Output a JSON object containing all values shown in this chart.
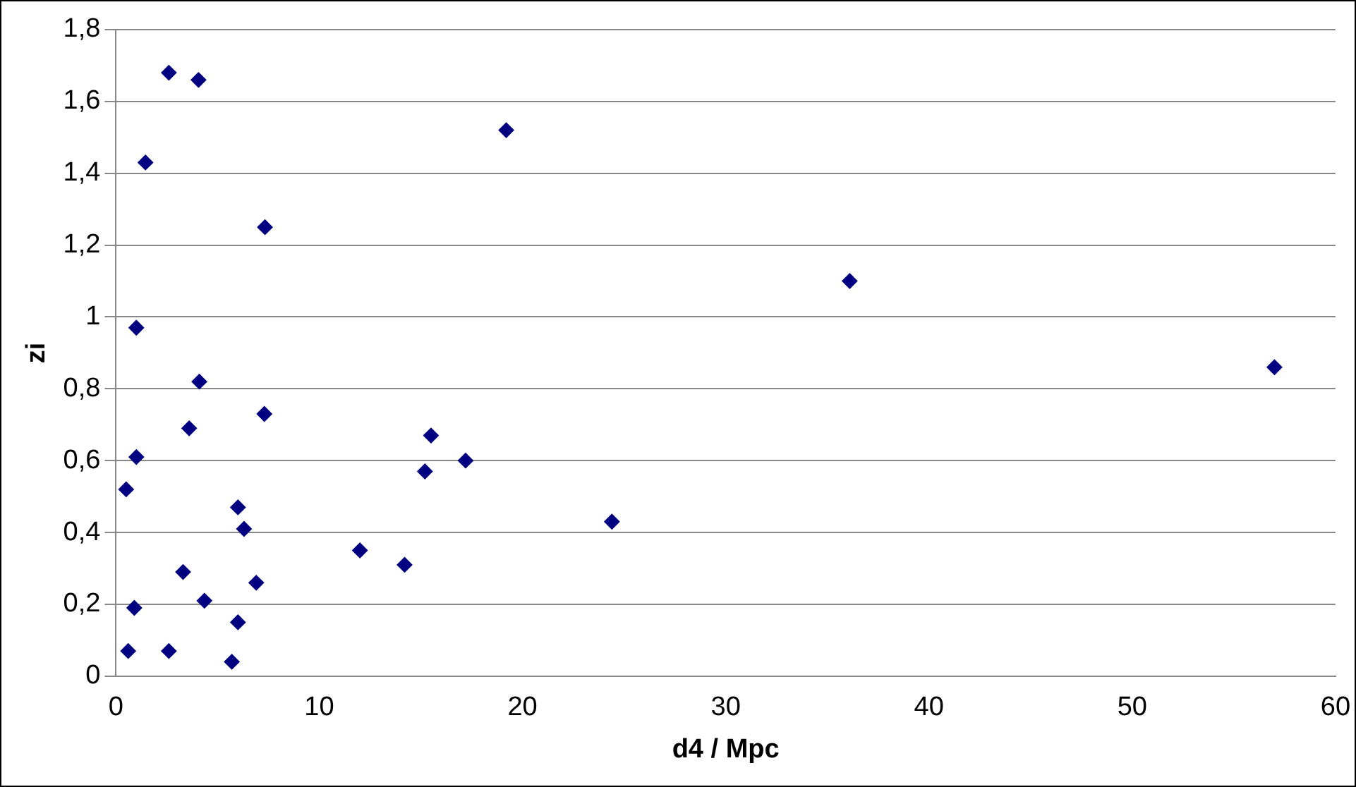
{
  "chart_data": {
    "type": "scatter",
    "xlabel": "d4 / Mpc",
    "ylabel": "zi",
    "x": [
      2.6,
      4.06,
      1.45,
      19.2,
      7.33,
      36.1,
      1.0,
      57.0,
      4.1,
      7.3,
      3.6,
      15.5,
      1.0,
      17.2,
      15.2,
      0.5,
      6.0,
      6.3,
      24.4,
      12.0,
      14.2,
      3.3,
      6.9,
      4.35,
      0.9,
      6.0,
      0.6,
      2.6,
      5.7
    ],
    "series": [
      {
        "color": "#000080",
        "values": [
          1.68,
          1.66,
          1.43,
          1.52,
          1.25,
          1.1,
          0.97,
          0.86,
          0.82,
          0.73,
          0.69,
          0.67,
          0.61,
          0.6,
          0.57,
          0.52,
          0.47,
          0.41,
          0.43,
          0.35,
          0.31,
          0.29,
          0.26,
          0.21,
          0.19,
          0.15,
          0.07,
          0.07,
          0.04
        ]
      }
    ],
    "xlim": [
      0,
      60
    ],
    "xticks": [
      0,
      10,
      20,
      30,
      40,
      50,
      60
    ],
    "ylim": [
      0,
      1.8
    ],
    "yticks": [
      0,
      {
        "value": 0.2,
        "label": "0,2"
      },
      {
        "value": 0.4,
        "label": "0,4"
      },
      {
        "value": 0.6,
        "label": "0,6"
      },
      {
        "value": 0.8,
        "label": "0,8"
      },
      1,
      {
        "value": 1.2,
        "label": "1,2"
      },
      {
        "value": 1.4,
        "label": "1,4"
      },
      {
        "value": 1.6,
        "label": "1,6"
      },
      {
        "value": 1.8,
        "label": "1,8"
      }
    ],
    "grid": "y",
    "legend": false,
    "marker": "diamond"
  }
}
